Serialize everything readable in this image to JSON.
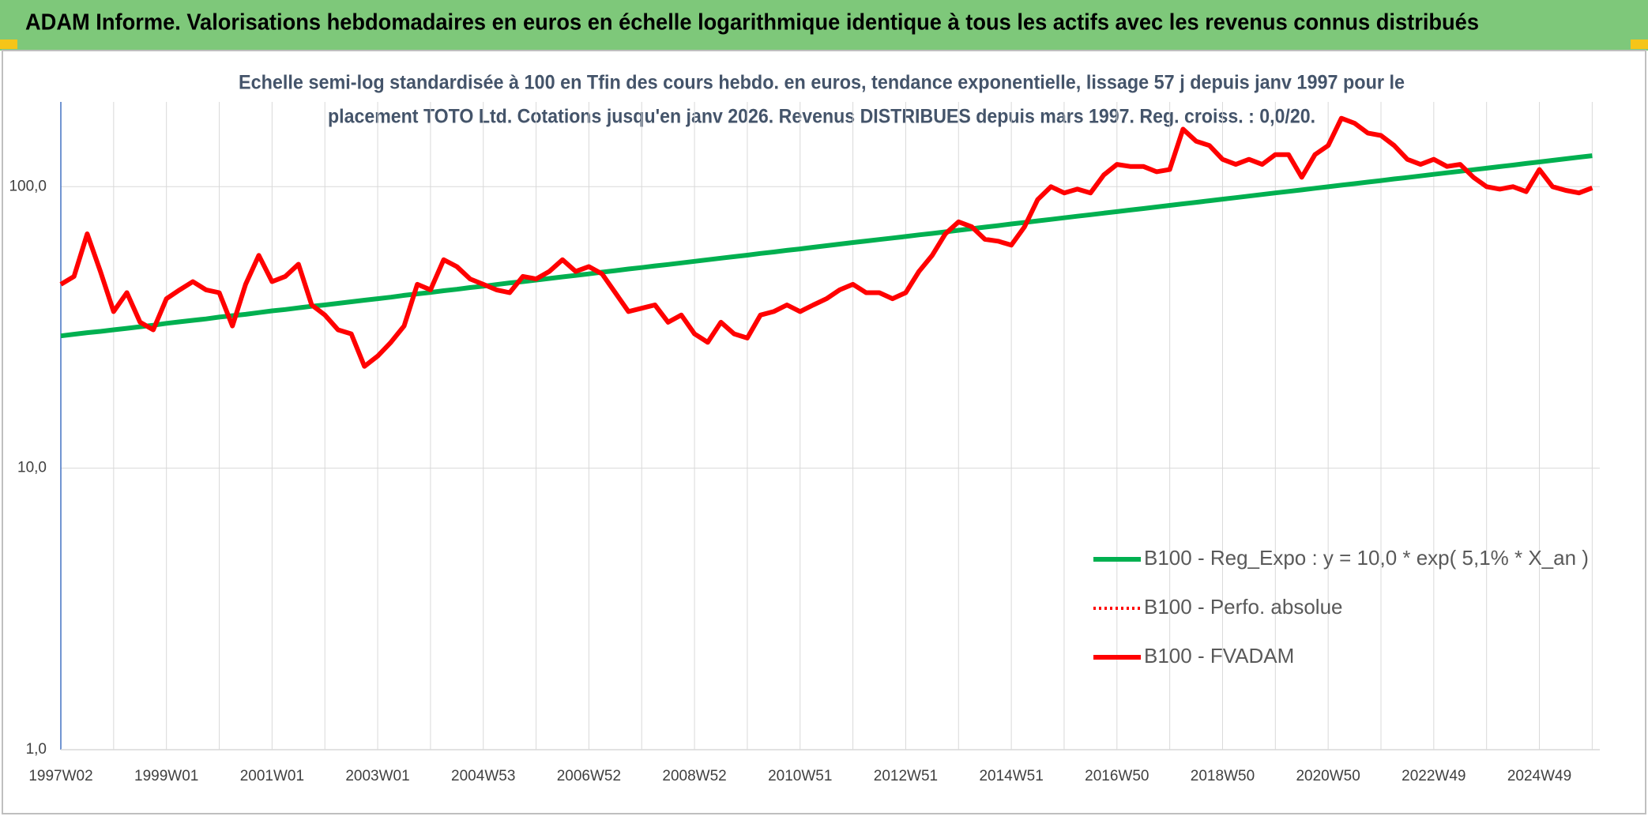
{
  "chart_data": {
    "type": "line",
    "title": "ADAM Informe. Valorisations hebdomadaires en euros en échelle logarithmique identique à tous les actifs avec les revenus connus distribués",
    "subtitle": [
      "Echelle semi-log standardisée à 100 en Tfin des cours hebdo. en euros, tendance exponentielle, lissage 57 j depuis janv 1997 pour le",
      "placement TOTO Ltd. Cotations jusqu'en janv 2026. Revenus DISTRIBUES depuis mars 1997. Reg. croiss. : 0,0/20."
    ],
    "categories": [
      "1997W02",
      null,
      null,
      null,
      null,
      null,
      null,
      null,
      "1999W01",
      null,
      null,
      null,
      null,
      null,
      null,
      null,
      "2001W01",
      null,
      null,
      null,
      null,
      null,
      null,
      null,
      "2003W01",
      null,
      null,
      null,
      null,
      null,
      null,
      null,
      "2004W53",
      null,
      null,
      null,
      null,
      null,
      null,
      null,
      "2006W52",
      null,
      null,
      null,
      null,
      null,
      null,
      null,
      "2008W52",
      null,
      null,
      null,
      null,
      null,
      null,
      null,
      "2010W51",
      null,
      null,
      null,
      null,
      null,
      null,
      null,
      "2012W51",
      null,
      null,
      null,
      null,
      null,
      null,
      null,
      "2014W51",
      null,
      null,
      null,
      null,
      null,
      null,
      null,
      "2016W50",
      null,
      null,
      null,
      null,
      null,
      null,
      null,
      "2018W50",
      null,
      null,
      null,
      null,
      null,
      null,
      null,
      "2020W50",
      null,
      null,
      null,
      null,
      null,
      null,
      null,
      "2022W49",
      null,
      null,
      null,
      null,
      null,
      null,
      null,
      "2024W49",
      null,
      null,
      null,
      null
    ],
    "series": [
      {
        "name": "B100 - Reg_Expo : y = 10,0 * exp( 5,1% *  X_an )",
        "color": "#00b050",
        "style": "solid",
        "values": [
          29.5,
          29.9,
          30.3,
          30.6,
          31.0,
          31.4,
          31.8,
          32.2,
          32.7,
          33.1,
          33.5,
          33.9,
          34.4,
          34.8,
          35.2,
          35.7,
          36.2,
          36.6,
          37.1,
          37.6,
          38.0,
          38.5,
          39.0,
          39.5,
          40.0,
          40.5,
          41.1,
          41.6,
          42.1,
          42.7,
          43.2,
          43.8,
          44.3,
          44.9,
          45.5,
          46.0,
          46.6,
          47.2,
          47.8,
          48.4,
          49.0,
          49.7,
          50.3,
          51.0,
          51.6,
          52.3,
          52.9,
          53.6,
          54.3,
          55.0,
          55.7,
          56.4,
          57.1,
          57.9,
          58.6,
          59.4,
          60.1,
          60.9,
          61.7,
          62.5,
          63.3,
          64.1,
          64.9,
          65.7,
          66.5,
          67.4,
          68.2,
          69.1,
          70.0,
          70.9,
          71.8,
          72.7,
          73.7,
          74.6,
          75.6,
          76.5,
          77.5,
          78.5,
          79.5,
          80.5,
          81.5,
          82.6,
          83.6,
          84.7,
          85.8,
          86.9,
          88.0,
          89.1,
          90.3,
          91.4,
          92.6,
          93.8,
          95.0,
          96.2,
          97.4,
          98.7,
          99.9,
          101.2,
          102.5,
          103.8,
          105.1,
          106.5,
          107.8,
          109.2,
          110.6,
          112.0,
          113.4,
          114.9,
          116.3,
          117.8,
          119.3,
          120.9,
          122.4,
          124.0,
          125.6,
          127.2,
          128.8
        ]
      },
      {
        "name": "B100 - Perfo. absolue",
        "color": "#ff0000",
        "style": "dotted",
        "values": [
          45,
          48,
          68,
          50,
          36,
          42,
          33,
          31,
          40,
          43,
          46,
          43,
          42,
          32,
          45,
          57,
          46,
          48,
          53,
          38,
          35,
          31,
          30,
          23,
          25,
          28,
          32,
          45,
          43,
          55,
          52,
          47,
          45,
          43,
          42,
          48,
          47,
          50,
          55,
          50,
          52,
          49,
          42,
          36,
          37,
          38,
          33,
          35,
          30,
          28,
          33,
          30,
          29,
          35,
          36,
          38,
          36,
          38,
          40,
          43,
          45,
          42,
          42,
          40,
          42,
          50,
          57,
          68,
          75,
          72,
          65,
          64,
          62,
          72,
          90,
          100,
          95,
          98,
          95,
          110,
          120,
          118,
          118,
          113,
          115,
          160,
          145,
          140,
          125,
          120,
          125,
          120,
          130,
          130,
          108,
          130,
          140,
          175,
          168,
          155,
          152,
          140,
          125,
          120,
          125,
          118,
          120,
          108,
          100,
          98,
          100,
          96,
          115,
          100,
          97,
          95,
          99
        ]
      },
      {
        "name": "B100 - FVADAM",
        "color": "#ff0000",
        "style": "solid",
        "values": [
          45,
          48,
          68,
          50,
          36,
          42,
          33,
          31,
          40,
          43,
          46,
          43,
          42,
          32,
          45,
          57,
          46,
          48,
          53,
          38,
          35,
          31,
          30,
          23,
          25,
          28,
          32,
          45,
          43,
          55,
          52,
          47,
          45,
          43,
          42,
          48,
          47,
          50,
          55,
          50,
          52,
          49,
          42,
          36,
          37,
          38,
          33,
          35,
          30,
          28,
          33,
          30,
          29,
          35,
          36,
          38,
          36,
          38,
          40,
          43,
          45,
          42,
          42,
          40,
          42,
          50,
          57,
          68,
          75,
          72,
          65,
          64,
          62,
          72,
          90,
          100,
          95,
          98,
          95,
          110,
          120,
          118,
          118,
          113,
          115,
          160,
          145,
          140,
          125,
          120,
          125,
          120,
          130,
          130,
          108,
          130,
          140,
          175,
          168,
          155,
          152,
          140,
          125,
          120,
          125,
          118,
          120,
          108,
          100,
          98,
          100,
          96,
          115,
          100,
          97,
          95,
          99
        ]
      }
    ],
    "ylog": true,
    "ylim": [
      1,
      200
    ],
    "yticks": [
      {
        "value": 1,
        "label": "1,0"
      },
      {
        "value": 10,
        "label": "10,0"
      },
      {
        "value": 100,
        "label": "100,0"
      }
    ],
    "grid": true,
    "legend": "lower right"
  }
}
